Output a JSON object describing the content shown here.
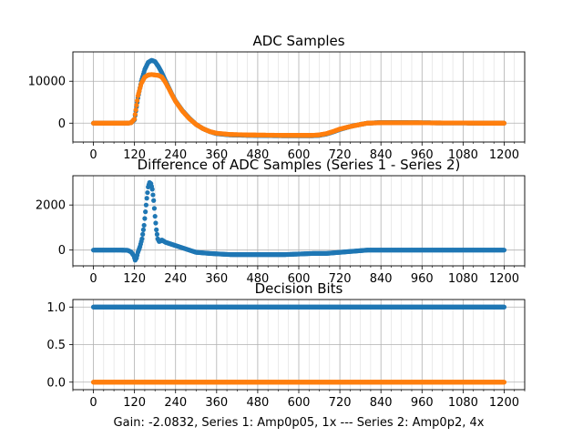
{
  "figure": {
    "footer": "Gain: -2.0832, Series 1: Amp0p05, 1x --- Series 2: Amp0p2, 4x"
  },
  "colors": {
    "series1": "#1f77b4",
    "series2": "#ff7f0e",
    "grid": "#b0b0b0",
    "axis": "#000000"
  },
  "chart_data": [
    {
      "type": "scatter",
      "title": "ADC Samples",
      "xlabel": "",
      "ylabel": "",
      "xlim": [
        -60,
        1260
      ],
      "ylim": [
        -4500,
        17000
      ],
      "x_ticks": [
        0,
        120,
        240,
        360,
        480,
        600,
        720,
        840,
        960,
        1080,
        1200
      ],
      "x_tick_labels": [
        "0",
        "120",
        "240",
        "360",
        "480",
        "600",
        "720",
        "840",
        "960",
        "1080",
        "1200"
      ],
      "x_minor_step": 30,
      "y_ticks": [
        0,
        10000
      ],
      "y_tick_labels": [
        "0",
        "10000"
      ],
      "grid": true,
      "series": [
        {
          "color": "#1f77b4",
          "x": [
            0,
            100,
            110,
            120,
            130,
            140,
            150,
            160,
            170,
            180,
            190,
            200,
            210,
            220,
            230,
            240,
            260,
            280,
            300,
            320,
            340,
            360,
            400,
            450,
            500,
            550,
            600,
            640,
            660,
            680,
            700,
            720,
            750,
            780,
            800,
            840,
            900,
            960,
            1020,
            1080,
            1140,
            1200
          ],
          "y": [
            0,
            0,
            100,
            800,
            6000,
            10000,
            12800,
            14500,
            15000,
            14700,
            13500,
            12000,
            10200,
            8500,
            6800,
            5300,
            3000,
            1200,
            -300,
            -1300,
            -2000,
            -2500,
            -2800,
            -2900,
            -2950,
            -3000,
            -3000,
            -3000,
            -2900,
            -2600,
            -2100,
            -1500,
            -800,
            -300,
            0,
            150,
            150,
            100,
            50,
            50,
            0,
            0
          ]
        },
        {
          "color": "#ff7f0e",
          "x": [
            0,
            100,
            110,
            120,
            130,
            140,
            150,
            160,
            170,
            180,
            190,
            200,
            210,
            220,
            230,
            240,
            260,
            280,
            300,
            320,
            340,
            360,
            400,
            450,
            500,
            550,
            600,
            640,
            660,
            680,
            700,
            720,
            750,
            780,
            800,
            840,
            900,
            960,
            1020,
            1080,
            1140,
            1200
          ],
          "y": [
            0,
            0,
            100,
            1000,
            6500,
            9500,
            11000,
            11500,
            11600,
            11500,
            11400,
            11000,
            9800,
            8300,
            6700,
            5200,
            2900,
            1100,
            -300,
            -1300,
            -2000,
            -2400,
            -2700,
            -2800,
            -2850,
            -2900,
            -2900,
            -2900,
            -2800,
            -2500,
            -2000,
            -1400,
            -800,
            -300,
            0,
            100,
            100,
            80,
            50,
            50,
            0,
            0
          ]
        }
      ]
    },
    {
      "type": "scatter",
      "title": "Difference of ADC Samples (Series 1 - Series 2)",
      "xlabel": "",
      "ylabel": "",
      "xlim": [
        -60,
        1260
      ],
      "ylim": [
        -700,
        3300
      ],
      "x_ticks": [
        0,
        120,
        240,
        360,
        480,
        600,
        720,
        840,
        960,
        1080,
        1200
      ],
      "x_tick_labels": [
        "0",
        "120",
        "240",
        "360",
        "480",
        "600",
        "720",
        "840",
        "960",
        "1080",
        "1200"
      ],
      "x_minor_step": 30,
      "y_ticks": [
        0,
        2000
      ],
      "y_tick_labels": [
        "0",
        "2000"
      ],
      "grid": true,
      "series": [
        {
          "color": "#1f77b4",
          "x": [
            0,
            80,
            100,
            110,
            118,
            122,
            126,
            130,
            136,
            142,
            148,
            152,
            156,
            160,
            164,
            168,
            172,
            176,
            180,
            184,
            188,
            192,
            196,
            200,
            210,
            220,
            230,
            240,
            260,
            280,
            300,
            340,
            400,
            480,
            560,
            640,
            680,
            720,
            760,
            800,
            840,
            900,
            960,
            1020,
            1080,
            1140,
            1200
          ],
          "y": [
            0,
            0,
            -10,
            -80,
            -250,
            -450,
            -350,
            -100,
            150,
            500,
            1100,
            1700,
            2300,
            2800,
            3000,
            2950,
            2700,
            2200,
            1500,
            900,
            500,
            380,
            400,
            450,
            350,
            300,
            250,
            200,
            100,
            0,
            -100,
            -150,
            -200,
            -200,
            -200,
            -150,
            -150,
            -100,
            -50,
            0,
            0,
            0,
            0,
            0,
            0,
            0,
            0
          ]
        }
      ]
    },
    {
      "type": "scatter",
      "title": "Decision Bits",
      "xlabel": "Gain: -2.0832, Series 1: Amp0p05, 1x --- Series 2: Amp0p2, 4x",
      "ylabel": "",
      "xlim": [
        -60,
        1260
      ],
      "ylim": [
        -0.1,
        1.1
      ],
      "x_ticks": [
        0,
        120,
        240,
        360,
        480,
        600,
        720,
        840,
        960,
        1080,
        1200
      ],
      "x_tick_labels": [
        "0",
        "120",
        "240",
        "360",
        "480",
        "600",
        "720",
        "840",
        "960",
        "1080",
        "1200"
      ],
      "x_minor_step": 30,
      "y_ticks": [
        0,
        0.5,
        1
      ],
      "y_tick_labels": [
        "0.0",
        "0.5",
        "1.0"
      ],
      "grid": true,
      "series": [
        {
          "color": "#1f77b4",
          "x": [
            0,
            1200
          ],
          "y": [
            1,
            1
          ]
        },
        {
          "color": "#ff7f0e",
          "x": [
            0,
            1200
          ],
          "y": [
            0,
            0
          ]
        }
      ]
    }
  ]
}
